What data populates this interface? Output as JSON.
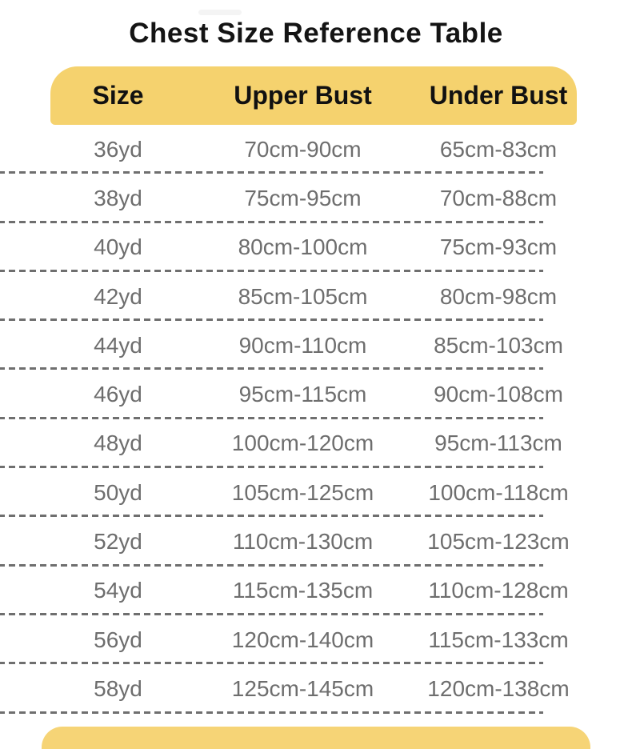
{
  "page": {
    "title": "Chest Size Reference Table"
  },
  "chart_data": {
    "type": "table",
    "title": "Chest Size Reference Table",
    "columns": [
      "Size",
      "Upper Bust",
      "Under Bust"
    ],
    "rows": [
      [
        "36yd",
        "70cm-90cm",
        "65cm-83cm"
      ],
      [
        "38yd",
        "75cm-95cm",
        "70cm-88cm"
      ],
      [
        "40yd",
        "80cm-100cm",
        "75cm-93cm"
      ],
      [
        "42yd",
        "85cm-105cm",
        "80cm-98cm"
      ],
      [
        "44yd",
        "90cm-110cm",
        "85cm-103cm"
      ],
      [
        "46yd",
        "95cm-115cm",
        "90cm-108cm"
      ],
      [
        "48yd",
        "100cm-120cm",
        "95cm-113cm"
      ],
      [
        "50yd",
        "105cm-125cm",
        "100cm-118cm"
      ],
      [
        "52yd",
        "110cm-130cm",
        "105cm-123cm"
      ],
      [
        "54yd",
        "115cm-135cm",
        "110cm-128cm"
      ],
      [
        "56yd",
        "120cm-140cm",
        "115cm-133cm"
      ],
      [
        "58yd",
        "125cm-145cm",
        "120cm-138cm"
      ]
    ],
    "layout": {
      "header_position": "top",
      "row_separator": "dashed",
      "grid": "horizontal-dashed-only"
    }
  },
  "colors": {
    "header_bg": "#F5D26E",
    "footer_bg": "#F6D476",
    "title_text": "#141414",
    "header_text": "#111111",
    "row_text": "#6E6E6E",
    "divider": "#6F6F6F",
    "background": "#FFFFFF"
  }
}
